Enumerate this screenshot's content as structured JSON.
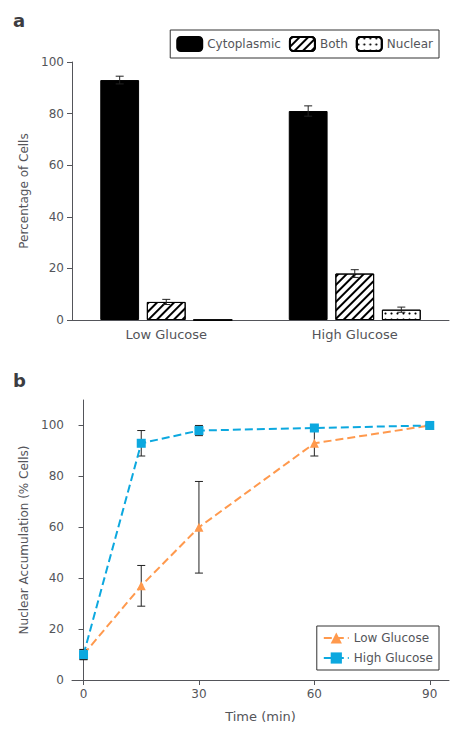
{
  "chart_data": [
    {
      "type": "bar",
      "title": "a",
      "categories": [
        "Low Glucose",
        "High Glucose"
      ],
      "series": [
        {
          "name": "Cytoplasmic",
          "color": "#000000",
          "values": [
            93,
            81
          ],
          "errors": [
            1.5,
            2.0
          ]
        },
        {
          "name": "Both",
          "color": "white",
          "values": [
            7,
            18
          ],
          "errors": [
            1.0,
            1.5
          ]
        },
        {
          "name": "Nuclear",
          "color": "white",
          "values": [
            0,
            4
          ],
          "errors": [
            0,
            1.0
          ]
        }
      ],
      "ylabel": "Percentage of Cells",
      "ylim": [
        0,
        100
      ],
      "yticks": [
        0,
        20,
        40,
        60,
        80,
        100
      ],
      "legend": "upper right",
      "grid": false
    },
    {
      "type": "line",
      "title": "b",
      "x": [
        0,
        15,
        30,
        60,
        90
      ],
      "series": [
        {
          "name": "Low Glucose",
          "values": [
            10,
            37,
            60,
            93,
            100
          ],
          "errors": [
            2,
            8,
            18,
            5,
            1
          ],
          "marker": "triangle",
          "line_style": "dashed"
        },
        {
          "name": "High Glucose",
          "values": [
            10,
            93,
            98,
            99,
            100
          ],
          "errors": [
            2,
            5,
            2,
            1,
            0.5
          ],
          "marker": "square",
          "line_style": "dashed"
        }
      ],
      "xlabel": "Time (min)",
      "ylabel": "Nuclear Accumulation (% Cells)",
      "xlim": [
        -3,
        95
      ],
      "xticks": [
        0,
        30,
        60,
        90
      ],
      "ylim": [
        0,
        110
      ],
      "yticks": [
        0,
        20,
        40,
        60,
        80,
        100
      ],
      "legend": "lower right",
      "grid": false
    }
  ]
}
